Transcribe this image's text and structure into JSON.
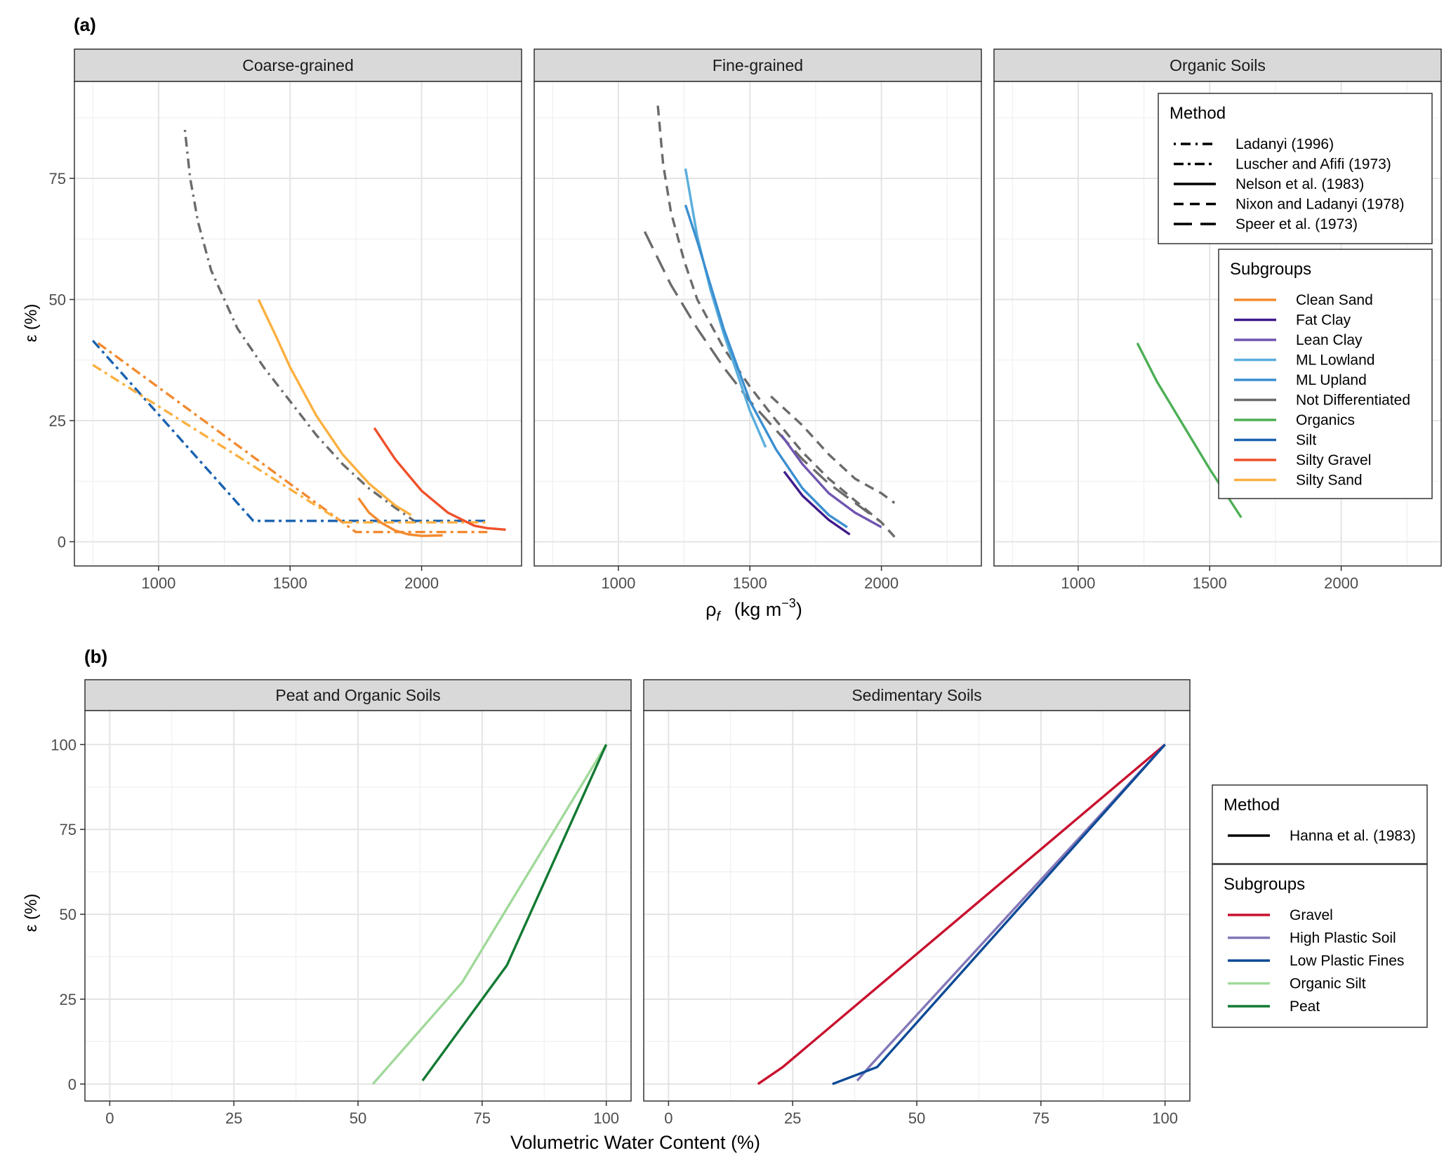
{
  "panel_a": {
    "tag": "(a)",
    "ylabel": "ε (%)",
    "xlabel_main": "ρ",
    "xlabel_sub": "f",
    "xlabel_unit": "(kg m",
    "xlabel_exp": "−3",
    "xlabel_close": ")",
    "facets": [
      "Coarse-grained",
      "Fine-grained",
      "Organic Soils"
    ]
  },
  "panel_b": {
    "tag": "(b)",
    "ylabel": "ε (%)",
    "xlabel": "Volumetric Water Content (%)",
    "facets": [
      "Peat and Organic Soils",
      "Sedimentary Soils"
    ]
  },
  "legend_a_method": {
    "title": "Method",
    "items": [
      {
        "label": "Ladanyi (1996)",
        "dash": "dotdash"
      },
      {
        "label": "Luscher and Afifi (1973)",
        "dash": "dashdot"
      },
      {
        "label": "Nelson et al. (1983)",
        "dash": "solid"
      },
      {
        "label": "Nixon and Ladanyi (1978)",
        "dash": "dashed"
      },
      {
        "label": "Speer et al. (1973)",
        "dash": "longdash"
      }
    ]
  },
  "legend_a_subgroups": {
    "title": "Subgroups",
    "items": [
      {
        "label": "Clean Sand",
        "color": "#f28a30"
      },
      {
        "label": "Fat Clay",
        "color": "#3f1a8a"
      },
      {
        "label": "Lean Clay",
        "color": "#7055b0"
      },
      {
        "label": "ML Lowland",
        "color": "#5aaedc"
      },
      {
        "label": "ML Upland",
        "color": "#3b8fd0"
      },
      {
        "label": "Not Differentiated",
        "color": "#6b6b6b"
      },
      {
        "label": "Organics",
        "color": "#4daf55"
      },
      {
        "label": "Silt",
        "color": "#1a62b0"
      },
      {
        "label": "Silty Gravel",
        "color": "#f0502a"
      },
      {
        "label": "Silty Sand",
        "color": "#fbb040"
      }
    ]
  },
  "legend_b_method": {
    "title": "Method",
    "items": [
      {
        "label": "Hanna et al. (1983)",
        "dash": "solid"
      }
    ]
  },
  "legend_b_subgroups": {
    "title": "Subgroups",
    "items": [
      {
        "label": "Gravel",
        "color": "#c8102e"
      },
      {
        "label": "High Plastic Soil",
        "color": "#8478b8"
      },
      {
        "label": "Low Plastic Fines",
        "color": "#0d4a96"
      },
      {
        "label": "Organic Silt",
        "color": "#a1d99b"
      },
      {
        "label": "Peat",
        "color": "#137a33"
      }
    ]
  },
  "chart_data": [
    {
      "type": "line",
      "facet": "Coarse-grained",
      "xlim": [
        680,
        2380
      ],
      "ylim": [
        -5,
        95
      ],
      "x_ticks": [
        1000,
        1500,
        2000
      ],
      "y_ticks": [
        0,
        25,
        50,
        75
      ],
      "series": [
        {
          "subgroup": "Not Differentiated",
          "method": "Ladanyi (1996)",
          "x": [
            1100,
            1120,
            1150,
            1200,
            1300,
            1400,
            1500,
            1600,
            1700,
            1800,
            1900,
            1980
          ],
          "y": [
            85,
            75,
            66,
            56,
            44,
            36,
            29,
            22,
            16,
            11,
            7,
            4
          ]
        },
        {
          "subgroup": "Silt",
          "method": "Luscher and Afifi (1973)",
          "x": [
            750,
            1360,
            2250
          ],
          "y": [
            41.5,
            4.3,
            4.3
          ]
        },
        {
          "subgroup": "Clean Sand",
          "method": "Luscher and Afifi (1973)",
          "x": [
            770,
            1750,
            2250
          ],
          "y": [
            41,
            2,
            2
          ]
        },
        {
          "subgroup": "Silty Sand",
          "method": "Luscher and Afifi (1973)",
          "x": [
            750,
            1700,
            2250
          ],
          "y": [
            36.5,
            4,
            4
          ]
        },
        {
          "subgroup": "Silty Sand",
          "method": "Nelson et al. (1983)",
          "x": [
            1380,
            1450,
            1500,
            1600,
            1700,
            1800,
            1900,
            1960
          ],
          "y": [
            50,
            42,
            36,
            26,
            18,
            12,
            7.5,
            5.5
          ]
        },
        {
          "subgroup": "Clean Sand",
          "method": "Nelson et al. (1983)",
          "x": [
            1760,
            1800,
            1850,
            1900,
            1950,
            2000,
            2080
          ],
          "y": [
            9,
            6,
            3.8,
            2.3,
            1.5,
            1.2,
            1.3
          ]
        },
        {
          "subgroup": "Silty Gravel",
          "method": "Nelson et al. (1983)",
          "x": [
            1820,
            1900,
            2000,
            2100,
            2200,
            2250,
            2320
          ],
          "y": [
            23.5,
            17,
            10.5,
            6,
            3.3,
            2.8,
            2.5
          ]
        }
      ]
    },
    {
      "type": "line",
      "facet": "Fine-grained",
      "xlim": [
        680,
        2380
      ],
      "ylim": [
        -5,
        95
      ],
      "x_ticks": [
        1000,
        1500,
        2000
      ],
      "y_ticks": [
        0,
        25,
        50,
        75
      ],
      "series": [
        {
          "subgroup": "Not Differentiated",
          "method": "Nixon and Ladanyi (1978)",
          "x": [
            1150,
            1170,
            1200,
            1250,
            1300,
            1400,
            1500,
            1600,
            1700,
            1800,
            1900,
            2000,
            2050
          ],
          "y": [
            90,
            78,
            68,
            58,
            50,
            40,
            32,
            25,
            18.5,
            13,
            8.5,
            4,
            1
          ]
        },
        {
          "subgroup": "Not Differentiated",
          "method": "Nixon and Ladanyi (1978)",
          "x": [
            1580,
            1700,
            1800,
            1900,
            2000,
            2050
          ],
          "y": [
            30,
            24,
            18,
            13,
            10,
            8
          ]
        },
        {
          "subgroup": "Not Differentiated",
          "method": "Speer et al. (1973)",
          "x": [
            1100,
            1200,
            1300,
            1400,
            1500,
            1600,
            1700,
            1800,
            1900,
            2000
          ],
          "y": [
            64,
            53,
            44,
            36,
            29,
            23,
            17,
            12,
            8,
            4
          ]
        },
        {
          "subgroup": "ML Lowland",
          "method": "Nelson et al. (1983)",
          "x": [
            1255,
            1300,
            1350,
            1400,
            1450,
            1500,
            1560
          ],
          "y": [
            77,
            63,
            52,
            43,
            35,
            27,
            19.5
          ]
        },
        {
          "subgroup": "ML Upland",
          "method": "Nelson et al. (1983)",
          "x": [
            1255,
            1300,
            1400,
            1500,
            1600,
            1700,
            1800,
            1870
          ],
          "y": [
            69.5,
            62,
            44,
            29,
            19,
            11,
            5.5,
            3
          ]
        },
        {
          "subgroup": "Lean Clay",
          "method": "Nelson et al. (1983)",
          "x": [
            1620,
            1700,
            1800,
            1900,
            2000
          ],
          "y": [
            22,
            16,
            10,
            6,
            3
          ]
        },
        {
          "subgroup": "Fat Clay",
          "method": "Nelson et al. (1983)",
          "x": [
            1630,
            1700,
            1800,
            1880
          ],
          "y": [
            14.5,
            9.5,
            4.5,
            1.5
          ]
        }
      ]
    },
    {
      "type": "line",
      "facet": "Organic Soils",
      "xlim": [
        680,
        2380
      ],
      "ylim": [
        -5,
        95
      ],
      "x_ticks": [
        1000,
        1500,
        2000
      ],
      "y_ticks": [
        0,
        25,
        50,
        75
      ],
      "series": [
        {
          "subgroup": "Organics",
          "method": "Nelson et al. (1983)",
          "x": [
            1225,
            1300,
            1400,
            1500,
            1620
          ],
          "y": [
            41,
            33,
            24,
            15,
            5
          ]
        }
      ]
    },
    {
      "type": "line",
      "facet": "Peat and Organic Soils",
      "xlim": [
        -5,
        105
      ],
      "ylim": [
        -5,
        110
      ],
      "x_ticks": [
        0,
        25,
        50,
        75,
        100
      ],
      "y_ticks": [
        0,
        25,
        50,
        75,
        100
      ],
      "series": [
        {
          "subgroup": "Organic Silt",
          "method": "Hanna et al. (1983)",
          "x": [
            53,
            71,
            100
          ],
          "y": [
            0,
            30,
            100
          ]
        },
        {
          "subgroup": "Peat",
          "method": "Hanna et al. (1983)",
          "x": [
            63,
            80,
            100
          ],
          "y": [
            1,
            35,
            100
          ]
        }
      ]
    },
    {
      "type": "line",
      "facet": "Sedimentary Soils",
      "xlim": [
        -5,
        105
      ],
      "ylim": [
        -5,
        110
      ],
      "x_ticks": [
        0,
        25,
        50,
        75,
        100
      ],
      "y_ticks": [
        0,
        25,
        50,
        75,
        100
      ],
      "series": [
        {
          "subgroup": "Gravel",
          "method": "Hanna et al. (1983)",
          "x": [
            18,
            23,
            100
          ],
          "y": [
            0,
            5,
            100
          ]
        },
        {
          "subgroup": "High Plastic Soil",
          "method": "Hanna et al. (1983)",
          "x": [
            38,
            41,
            100
          ],
          "y": [
            1,
            6,
            100
          ]
        },
        {
          "subgroup": "Low Plastic Fines",
          "method": "Hanna et al. (1983)",
          "x": [
            33,
            42,
            100
          ],
          "y": [
            0,
            5,
            100
          ]
        }
      ]
    }
  ]
}
